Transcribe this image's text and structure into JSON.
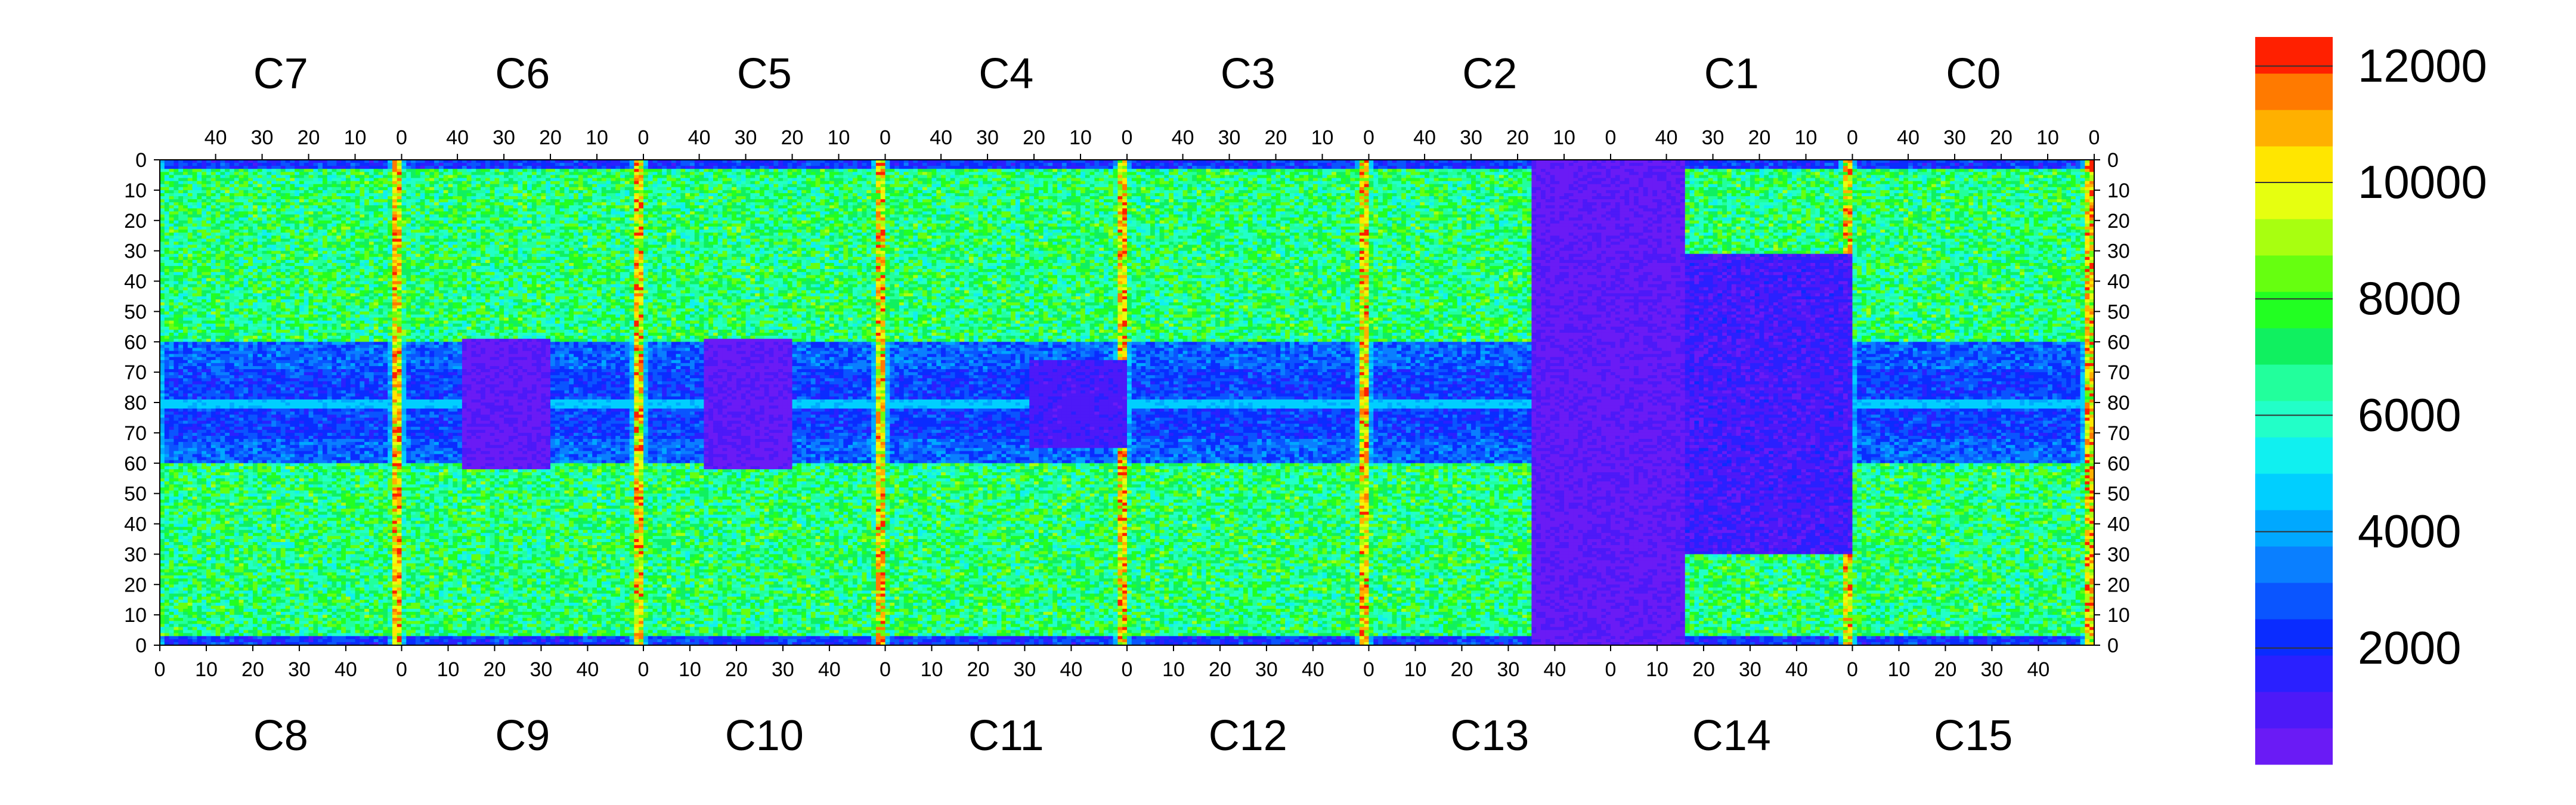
{
  "chart_data": {
    "type": "heatmap",
    "title": "",
    "xlabel": "",
    "ylabel": "",
    "top_chips": [
      "C7",
      "C6",
      "C5",
      "C4",
      "C3",
      "C2",
      "C1",
      "C0"
    ],
    "bottom_chips": [
      "C8",
      "C9",
      "C10",
      "C11",
      "C12",
      "C13",
      "C14",
      "C15"
    ],
    "x_range_per_chip": [
      0,
      51
    ],
    "y_range": [
      0,
      160
    ],
    "y_ticks_top_half": [
      0,
      10,
      20,
      30,
      40,
      50,
      60,
      70,
      80
    ],
    "y_ticks_bottom_half": [
      80,
      70,
      60,
      50,
      40,
      30,
      20,
      10,
      0
    ],
    "x_tick_labels_top": [
      "40",
      "30",
      "20",
      "10",
      "0"
    ],
    "x_tick_labels_bottom": [
      "0",
      "10",
      "20",
      "30",
      "40"
    ],
    "colorbar": {
      "min": 0,
      "max": 12500,
      "levels": 20,
      "tick_values": [
        2000,
        4000,
        6000,
        8000,
        10000,
        12000
      ],
      "tick_labels": [
        "2000",
        "4000",
        "6000",
        "8000",
        "10000",
        "12000"
      ],
      "colors": [
        "#6a1bf5",
        "#4d19f8",
        "#2a20ff",
        "#0a2cff",
        "#0a55ff",
        "#0a7fff",
        "#00a8ff",
        "#00cfff",
        "#10f0f0",
        "#22ffc8",
        "#22ff9c",
        "#10f060",
        "#22ff22",
        "#66ff10",
        "#a8ff10",
        "#e6ff10",
        "#ffe600",
        "#ffb000",
        "#ff7a00",
        "#ff2000"
      ]
    },
    "notes": {
      "hot_columns": "red/orange columns at each chip boundary x=0 (values ~11000-12500)",
      "dead_region": "C13/C14 area mostly at minimum (~0-1000) with scattered white empty pixels",
      "typical_values": "chip interiors mostly 4000-9000"
    }
  }
}
